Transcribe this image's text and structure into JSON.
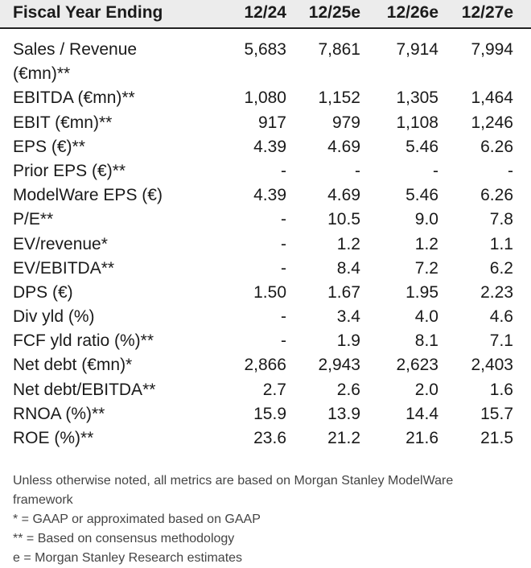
{
  "header": {
    "label": "Fiscal Year Ending",
    "years": [
      "12/24",
      "12/25e",
      "12/26e",
      "12/27e"
    ]
  },
  "rows": [
    {
      "label": "Sales / Revenue (€mn)**",
      "values": [
        "5,683",
        "7,861",
        "7,914",
        "7,994"
      ]
    },
    {
      "label": "EBITDA (€mn)**",
      "values": [
        "1,080",
        "1,152",
        "1,305",
        "1,464"
      ]
    },
    {
      "label": "EBIT (€mn)**",
      "values": [
        "917",
        "979",
        "1,108",
        "1,246"
      ]
    },
    {
      "label": "EPS (€)**",
      "values": [
        "4.39",
        "4.69",
        "5.46",
        "6.26"
      ]
    },
    {
      "label": "Prior EPS (€)**",
      "values": [
        "-",
        "-",
        "-",
        "-"
      ]
    },
    {
      "label": "ModelWare EPS (€)",
      "values": [
        "4.39",
        "4.69",
        "5.46",
        "6.26"
      ]
    },
    {
      "label": "P/E**",
      "values": [
        "-",
        "10.5",
        "9.0",
        "7.8"
      ]
    },
    {
      "label": "EV/revenue*",
      "values": [
        "-",
        "1.2",
        "1.2",
        "1.1"
      ]
    },
    {
      "label": "EV/EBITDA**",
      "values": [
        "-",
        "8.4",
        "7.2",
        "6.2"
      ]
    },
    {
      "label": "DPS (€)",
      "values": [
        "1.50",
        "1.67",
        "1.95",
        "2.23"
      ]
    },
    {
      "label": "Div yld (%)",
      "values": [
        "-",
        "3.4",
        "4.0",
        "4.6"
      ]
    },
    {
      "label": "FCF yld ratio (%)**",
      "values": [
        "-",
        "1.9",
        "8.1",
        "7.1"
      ]
    },
    {
      "label": "Net debt (€mn)*",
      "values": [
        "2,866",
        "2,943",
        "2,623",
        "2,403"
      ]
    },
    {
      "label": "Net debt/EBITDA**",
      "values": [
        "2.7",
        "2.6",
        "2.0",
        "1.6"
      ]
    },
    {
      "label": "RNOA (%)**",
      "values": [
        "15.9",
        "13.9",
        "14.4",
        "15.7"
      ]
    },
    {
      "label": "ROE (%)**",
      "values": [
        "23.6",
        "21.2",
        "21.6",
        "21.5"
      ]
    }
  ],
  "footnotes": [
    "Unless otherwise noted, all metrics are based on Morgan Stanley ModelWare framework",
    "* = GAAP or approximated based on GAAP",
    "** = Based on consensus methodology",
    "e = Morgan Stanley Research estimates"
  ]
}
